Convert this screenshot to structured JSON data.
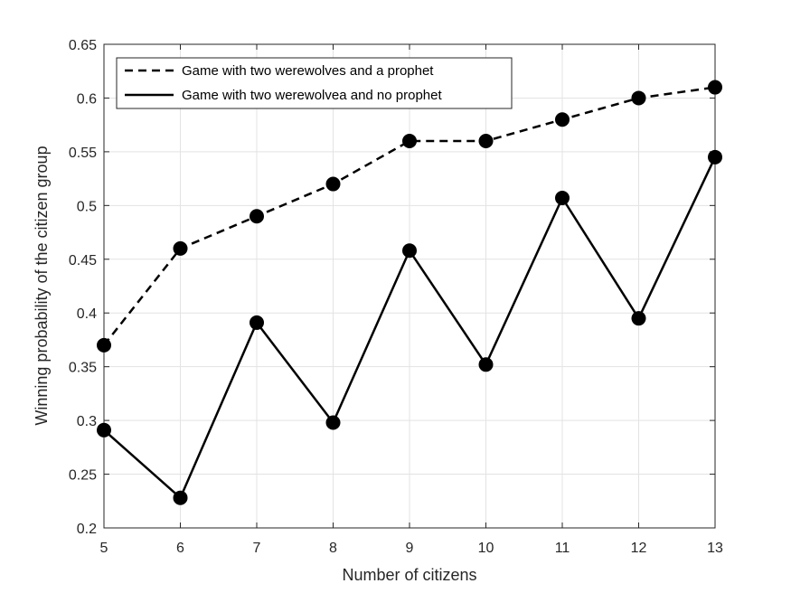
{
  "chart_data": {
    "type": "line",
    "title": "",
    "xlabel": "Number of citizens",
    "ylabel": "Winning probability of the citizen group",
    "x": [
      5,
      6,
      7,
      8,
      9,
      10,
      11,
      12,
      13
    ],
    "xlim": [
      5,
      13
    ],
    "ylim": [
      0.2,
      0.65
    ],
    "xticks": [
      "5",
      "6",
      "7",
      "8",
      "9",
      "10",
      "11",
      "12",
      "13"
    ],
    "yticks": [
      "0.2",
      "0.25",
      "0.3",
      "0.35",
      "0.4",
      "0.45",
      "0.5",
      "0.55",
      "0.6",
      "0.65"
    ],
    "grid": true,
    "legend_position": "top-left",
    "series": [
      {
        "name": "Game with two werewolves and a prophet",
        "style": "dashed",
        "color": "#000000",
        "values": [
          0.37,
          0.46,
          0.49,
          0.52,
          0.56,
          0.56,
          0.58,
          0.6,
          0.61
        ]
      },
      {
        "name": "Game with two werewolvea and no prophet",
        "style": "solid",
        "color": "#000000",
        "values": [
          0.291,
          0.228,
          0.391,
          0.298,
          0.458,
          0.352,
          0.507,
          0.395,
          0.545
        ]
      }
    ]
  }
}
